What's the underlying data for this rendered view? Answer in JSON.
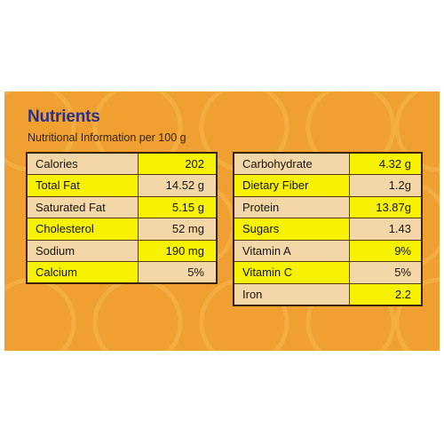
{
  "title": "Nutrients",
  "subtitle": "Nutritional Information per 100 g",
  "colors": {
    "background": "#f0a030",
    "title": "#2a2f8a",
    "cell_beige": "#f3d7a8",
    "cell_yellow": "#f7f200",
    "border": "#3a2208"
  },
  "left_table": [
    {
      "name": "Calories",
      "value": "202",
      "name_bg": "beige",
      "value_bg": "yellow"
    },
    {
      "name": "Total Fat",
      "value": "14.52 g",
      "name_bg": "yellow",
      "value_bg": "beige"
    },
    {
      "name": "Saturated Fat",
      "value": "5.15 g",
      "name_bg": "beige",
      "value_bg": "yellow"
    },
    {
      "name": "Cholesterol",
      "value": "52 mg",
      "name_bg": "yellow",
      "value_bg": "beige"
    },
    {
      "name": "Sodium",
      "value": "190 mg",
      "name_bg": "beige",
      "value_bg": "yellow"
    },
    {
      "name": "Calcium",
      "value": "5%",
      "name_bg": "yellow",
      "value_bg": "beige"
    }
  ],
  "right_table": [
    {
      "name": "Carbohydrate",
      "value": "4.32 g",
      "name_bg": "beige",
      "value_bg": "yellow"
    },
    {
      "name": "Dietary Fiber",
      "value": "1.2g",
      "name_bg": "yellow",
      "value_bg": "beige"
    },
    {
      "name": "Protein",
      "value": "13.87g",
      "name_bg": "beige",
      "value_bg": "yellow"
    },
    {
      "name": "Sugars",
      "value": "1.43",
      "name_bg": "yellow",
      "value_bg": "beige"
    },
    {
      "name": "Vitamin A",
      "value": "9%",
      "name_bg": "beige",
      "value_bg": "yellow"
    },
    {
      "name": "Vitamin C",
      "value": "5%",
      "name_bg": "yellow",
      "value_bg": "beige"
    },
    {
      "name": "Iron",
      "value": "2.2",
      "name_bg": "beige",
      "value_bg": "yellow"
    }
  ]
}
